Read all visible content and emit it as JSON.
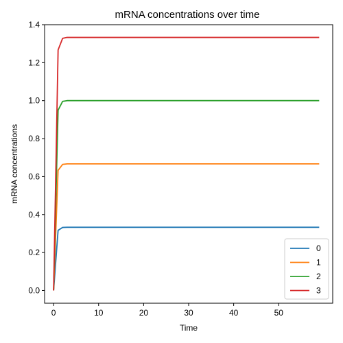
{
  "chart_data": {
    "type": "line",
    "title": "mRNA concentrations over time",
    "xlabel": "Time",
    "ylabel": "mRNA concentrations",
    "xlim": [
      -2,
      62
    ],
    "ylim": [
      -0.067,
      1.4
    ],
    "xticks": [
      0,
      10,
      20,
      30,
      40,
      50
    ],
    "yticks": [
      0.0,
      0.2,
      0.4,
      0.6,
      0.8,
      1.0,
      1.2,
      1.4
    ],
    "grid": false,
    "legend_position": "lower-right",
    "series": [
      {
        "name": "0",
        "color": "#1f77b4",
        "x": [
          0,
          1,
          2,
          3,
          59
        ],
        "y": [
          0.0,
          0.317,
          0.332,
          0.333,
          0.333
        ]
      },
      {
        "name": "1",
        "color": "#ff7f0e",
        "x": [
          0,
          1,
          2,
          3,
          59
        ],
        "y": [
          0.0,
          0.633,
          0.664,
          0.667,
          0.667
        ]
      },
      {
        "name": "2",
        "color": "#2ca02c",
        "x": [
          0,
          1,
          2,
          3,
          59
        ],
        "y": [
          0.0,
          0.95,
          0.996,
          1.0,
          1.0
        ]
      },
      {
        "name": "3",
        "color": "#d62728",
        "x": [
          0,
          1,
          2,
          3,
          59
        ],
        "y": [
          0.0,
          1.267,
          1.328,
          1.333,
          1.333
        ]
      }
    ]
  }
}
